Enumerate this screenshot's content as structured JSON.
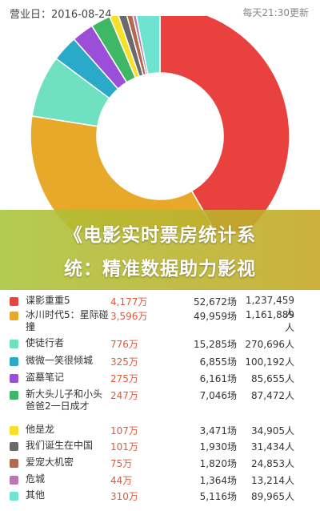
{
  "header": {
    "business_date": "营业日：2016-08-24",
    "update_time": "每天21:30更新"
  },
  "banner": {
    "line1": "《电影实时票房统计系",
    "line2": "统：精准数据助力影视"
  },
  "chart_data": {
    "type": "pie",
    "values": [
      4177,
      3596,
      776,
      325,
      275,
      247,
      107,
      101,
      75,
      44,
      310
    ],
    "colors": [
      "#e8413e",
      "#e8a82a",
      "#6fe0c0",
      "#2aa9c8",
      "#9b4fd8",
      "#3fb866",
      "#f7e02a",
      "#6a6a6a",
      "#b4684c",
      "#b879b2",
      "#6ee4d0"
    ]
  },
  "rows": [
    {
      "name": "谍影重重5",
      "boxoffice": "4,177万",
      "shows": "52,672场",
      "people": "1,237,459人",
      "color": "#e8413e"
    },
    {
      "name": "冰川时代5：星际碰撞",
      "boxoffice": "3,596万",
      "shows": "49,959场",
      "people": "1,161,889人",
      "color": "#e8a82a"
    },
    {
      "name": "使徒行者",
      "boxoffice": "776万",
      "shows": "15,285场",
      "people": "270,696人",
      "color": "#6fe0c0"
    },
    {
      "name": "微微一笑很倾城",
      "boxoffice": "325万",
      "shows": "6,855场",
      "people": "100,192人",
      "color": "#2aa9c8"
    },
    {
      "name": "盗墓笔记",
      "boxoffice": "275万",
      "shows": "6,161场",
      "people": "85,655人",
      "color": "#9b4fd8"
    },
    {
      "name": "新大头儿子和小头爸爸2一日成才",
      "boxoffice": "247万",
      "shows": "7,046场",
      "people": "87,472人",
      "color": "#3fb866"
    },
    {
      "name": "他是龙",
      "boxoffice": "107万",
      "shows": "3,471场",
      "people": "34,905人",
      "color": "#f7e02a"
    },
    {
      "name": "我们诞生在中国",
      "boxoffice": "101万",
      "shows": "1,930场",
      "people": "31,434人",
      "color": "#6a6a6a"
    },
    {
      "name": "爱宠大机密",
      "boxoffice": "75万",
      "shows": "1,820场",
      "people": "24,853人",
      "color": "#b4684c"
    },
    {
      "name": "危城",
      "boxoffice": "44万",
      "shows": "1,364场",
      "people": "13,214人",
      "color": "#b879b2"
    },
    {
      "name": "其他",
      "boxoffice": "310万",
      "shows": "5,116场",
      "people": "89,965人",
      "color": "#6ee4d0"
    }
  ]
}
